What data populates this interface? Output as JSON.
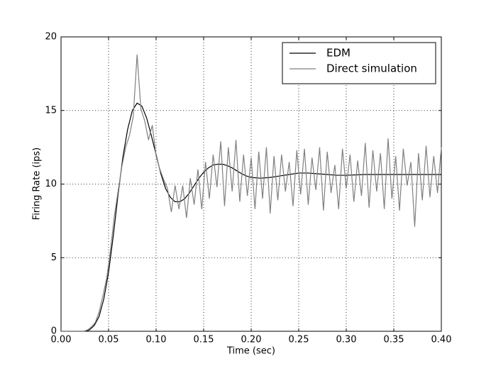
{
  "chart_data": {
    "type": "line",
    "xlabel": "Time (sec)",
    "ylabel": "Firing Rate (ips)",
    "xlim": [
      0,
      0.4
    ],
    "ylim": [
      0,
      20
    ],
    "xticks": [
      {
        "value": 0,
        "label": "0.00"
      },
      {
        "value": 0.05,
        "label": "0.05"
      },
      {
        "value": 0.1,
        "label": "0.10"
      },
      {
        "value": 0.15,
        "label": "0.15"
      },
      {
        "value": 0.2,
        "label": "0.20"
      },
      {
        "value": 0.25,
        "label": "0.25"
      },
      {
        "value": 0.3,
        "label": "0.30"
      },
      {
        "value": 0.35,
        "label": "0.35"
      },
      {
        "value": 0.4,
        "label": "0.40"
      }
    ],
    "yticks": [
      0,
      5,
      10,
      15,
      20
    ],
    "grid": true,
    "legend": "upper right",
    "series": [
      {
        "name": "EDM",
        "color": "#000000",
        "x": [
          0,
          0.025,
          0.03,
          0.035,
          0.04,
          0.045,
          0.05,
          0.055,
          0.06,
          0.065,
          0.07,
          0.075,
          0.08,
          0.085,
          0.09,
          0.095,
          0.1,
          0.105,
          0.11,
          0.115,
          0.12,
          0.125,
          0.13,
          0.135,
          0.14,
          0.145,
          0.15,
          0.155,
          0.16,
          0.165,
          0.17,
          0.175,
          0.18,
          0.185,
          0.19,
          0.195,
          0.2,
          0.21,
          0.22,
          0.23,
          0.24,
          0.25,
          0.26,
          0.27,
          0.28,
          0.29,
          0.3,
          0.32,
          0.34,
          0.36,
          0.38,
          0.4
        ],
        "values": [
          0,
          0,
          0.1,
          0.4,
          1.0,
          2.2,
          4.0,
          6.5,
          9.3,
          11.8,
          13.7,
          15.0,
          15.5,
          15.3,
          14.5,
          13.3,
          12.0,
          10.7,
          9.7,
          9.1,
          8.8,
          8.8,
          9.0,
          9.4,
          9.9,
          10.4,
          10.8,
          11.1,
          11.3,
          11.35,
          11.35,
          11.25,
          11.1,
          10.9,
          10.7,
          10.55,
          10.45,
          10.4,
          10.45,
          10.55,
          10.65,
          10.75,
          10.75,
          10.7,
          10.65,
          10.6,
          10.6,
          10.65,
          10.65,
          10.65,
          10.65,
          10.65
        ]
      },
      {
        "name": "Direct simulation",
        "color": "#808080",
        "x": [
          0,
          0.004,
          0.008,
          0.012,
          0.016,
          0.02,
          0.024,
          0.028,
          0.032,
          0.036,
          0.04,
          0.044,
          0.048,
          0.052,
          0.056,
          0.06,
          0.064,
          0.068,
          0.072,
          0.076,
          0.08,
          0.084,
          0.088,
          0.092,
          0.096,
          0.1,
          0.104,
          0.108,
          0.112,
          0.116,
          0.12,
          0.124,
          0.128,
          0.132,
          0.136,
          0.14,
          0.144,
          0.148,
          0.152,
          0.156,
          0.16,
          0.164,
          0.168,
          0.172,
          0.176,
          0.18,
          0.184,
          0.188,
          0.192,
          0.196,
          0.2,
          0.204,
          0.208,
          0.212,
          0.216,
          0.22,
          0.224,
          0.228,
          0.232,
          0.236,
          0.24,
          0.244,
          0.248,
          0.252,
          0.256,
          0.26,
          0.264,
          0.268,
          0.272,
          0.276,
          0.28,
          0.284,
          0.288,
          0.292,
          0.296,
          0.3,
          0.304,
          0.308,
          0.312,
          0.316,
          0.32,
          0.324,
          0.328,
          0.332,
          0.336,
          0.34,
          0.344,
          0.348,
          0.352,
          0.356,
          0.36,
          0.364,
          0.368,
          0.372,
          0.376,
          0.38,
          0.384,
          0.388,
          0.392,
          0.396,
          0.4
        ],
        "values": [
          0,
          0,
          0,
          0,
          0,
          0,
          0,
          0.1,
          0.3,
          0.6,
          1.3,
          2.4,
          3.6,
          5.5,
          7.8,
          9.5,
          11.2,
          12.5,
          13.3,
          14.6,
          18.8,
          15.1,
          14.3,
          13.0,
          14.0,
          11.9,
          11.0,
          10.3,
          9.7,
          8.1,
          9.9,
          8.3,
          9.9,
          7.7,
          10.4,
          8.6,
          11.0,
          8.3,
          11.5,
          9.0,
          12.0,
          9.8,
          12.9,
          8.5,
          12.5,
          9.5,
          13.0,
          8.8,
          12.0,
          9.2,
          11.8,
          8.3,
          12.2,
          9.0,
          12.5,
          8.0,
          11.9,
          8.9,
          12.0,
          9.5,
          11.5,
          8.5,
          12.3,
          9.3,
          12.4,
          8.6,
          11.8,
          9.6,
          12.5,
          8.2,
          12.2,
          9.4,
          11.3,
          8.3,
          12.4,
          9.7,
          12.0,
          8.8,
          11.6,
          9.2,
          12.8,
          8.4,
          12.3,
          9.5,
          12.1,
          8.3,
          13.1,
          9.0,
          11.9,
          8.2,
          12.4,
          9.9,
          11.5,
          7.1,
          12.1,
          8.9,
          12.6,
          9.1,
          11.9,
          9.4,
          12.5
        ]
      }
    ]
  }
}
